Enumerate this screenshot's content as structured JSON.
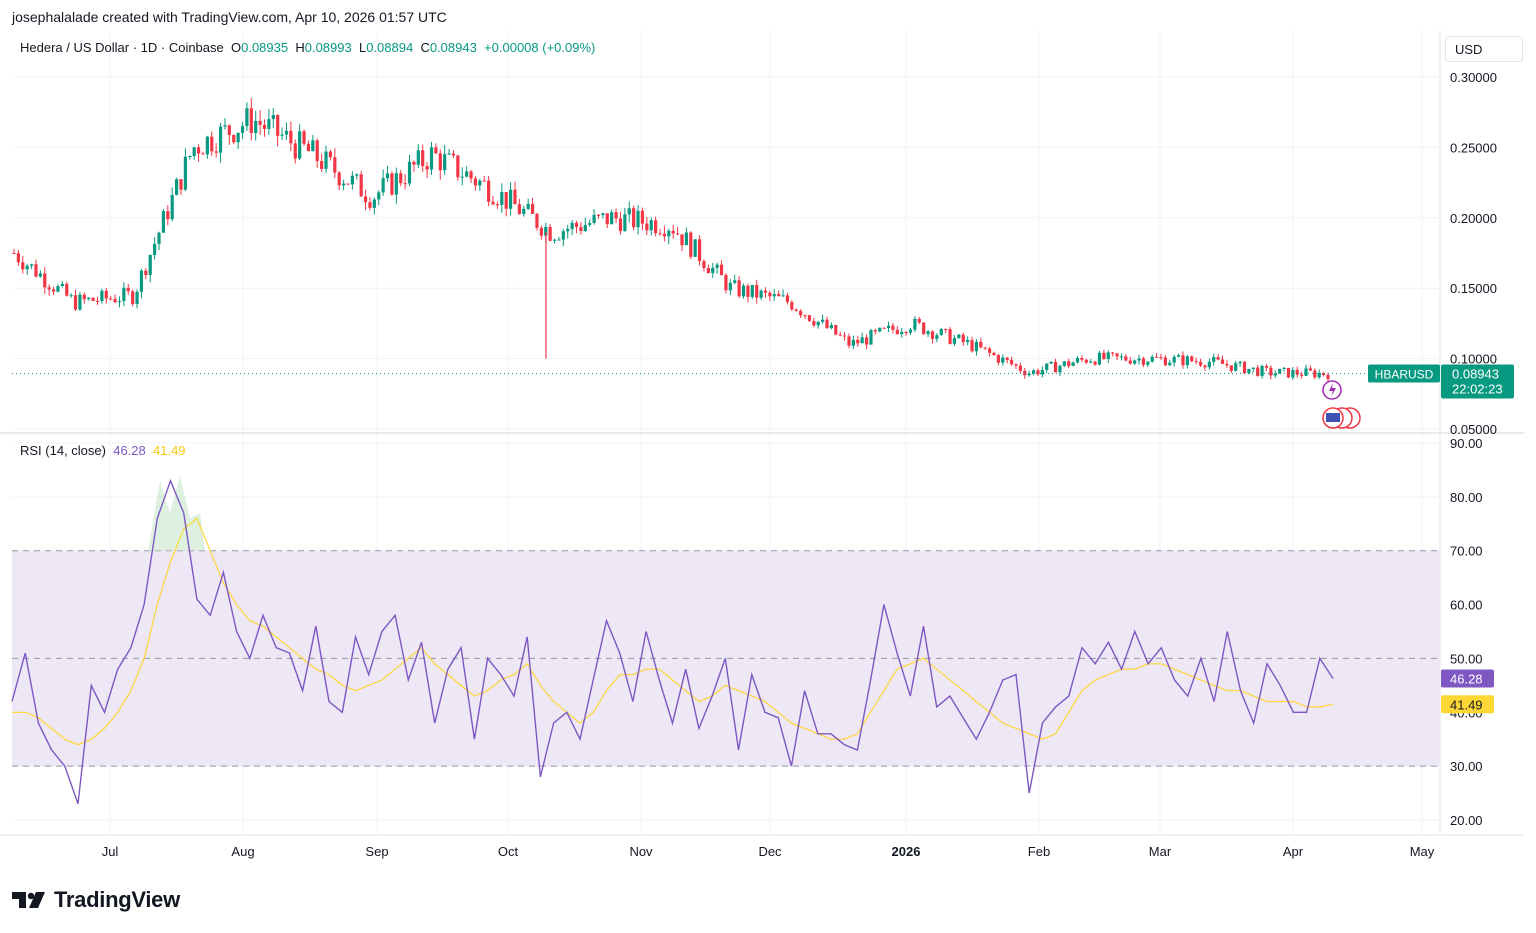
{
  "header": {
    "attribution": "josephalalade created with TradingView.com, Apr 10, 2026 01:57 UTC"
  },
  "legend": {
    "symbol": "Hedera / US Dollar · 1D · Coinbase",
    "o_label": "O",
    "o_value": "0.08935",
    "h_label": "H",
    "h_value": "0.08993",
    "l_label": "L",
    "l_value": "0.08894",
    "c_label": "C",
    "c_value": "0.08943",
    "change": "+0.00008 (+0.09%)"
  },
  "rsi_legend": {
    "label": "RSI (14, close)",
    "rsi_value": "46.28",
    "ma_value": "41.49"
  },
  "currency_button": "USD",
  "price_tag": {
    "symbol": "HBARUSD",
    "price": "0.08943",
    "countdown": "22:02:23"
  },
  "rsi_tags": {
    "rsi": "46.28",
    "ma": "41.49"
  },
  "logo": {
    "text": "TradingView"
  },
  "colors": {
    "up": "#089981",
    "down": "#f23645",
    "rsi_line": "#7e57c2",
    "rsi_ma": "#fdd835",
    "rsi_band": "#ede7f6"
  },
  "chart_data": [
    {
      "type": "candlestick",
      "title": "Hedera / US Dollar · 1D · Coinbase",
      "y_ticks": [
        "0.30000",
        "0.25000",
        "0.20000",
        "0.15000",
        "0.10000",
        "0.05000"
      ],
      "ylim": [
        0.05,
        0.3
      ],
      "x_ticks": [
        "Jul",
        "Aug",
        "Sep",
        "Oct",
        "Nov",
        "Dec",
        "2026",
        "Feb",
        "Mar",
        "Apr",
        "May"
      ],
      "approx_close_by_month": [
        {
          "t": "Jun",
          "v": 0.175
        },
        {
          "t": "Jun-end",
          "v": 0.14
        },
        {
          "t": "Jul",
          "v": 0.145
        },
        {
          "t": "Jul-mid",
          "v": 0.25
        },
        {
          "t": "Aug",
          "v": 0.27
        },
        {
          "t": "Aug-mid",
          "v": 0.245
        },
        {
          "t": "Sep",
          "v": 0.215
        },
        {
          "t": "Sep-mid",
          "v": 0.245
        },
        {
          "t": "Oct",
          "v": 0.22
        },
        {
          "t": "Oct-10",
          "v": 0.19
        },
        {
          "t": "Oct-end",
          "v": 0.2
        },
        {
          "t": "Nov",
          "v": 0.195
        },
        {
          "t": "Nov-mid",
          "v": 0.15
        },
        {
          "t": "Dec",
          "v": 0.14
        },
        {
          "t": "Dec-mid",
          "v": 0.11
        },
        {
          "t": "2026",
          "v": 0.125
        },
        {
          "t": "Jan-mid",
          "v": 0.11
        },
        {
          "t": "Feb",
          "v": 0.09
        },
        {
          "t": "Feb-mid",
          "v": 0.1
        },
        {
          "t": "Mar",
          "v": 0.1
        },
        {
          "t": "Mar-mid",
          "v": 0.098
        },
        {
          "t": "Apr",
          "v": 0.09
        },
        {
          "t": "Apr-10",
          "v": 0.08943
        }
      ],
      "last": 0.08943
    },
    {
      "type": "line",
      "title": "RSI (14, close)",
      "y_ticks": [
        "90.00",
        "80.00",
        "70.00",
        "60.00",
        "50.00",
        "40.00",
        "30.00",
        "20.00"
      ],
      "ylim": [
        20,
        90
      ],
      "bands": [
        30,
        50,
        70
      ],
      "series": [
        {
          "name": "RSI",
          "values": [
            42,
            51,
            38,
            33,
            30,
            23,
            45,
            40,
            48,
            52,
            60,
            76,
            83,
            77,
            61,
            58,
            66,
            55,
            50,
            58,
            52,
            51,
            44,
            56,
            42,
            40,
            54,
            47,
            55,
            58,
            46,
            53,
            38,
            48,
            52,
            35,
            50,
            47,
            43,
            54,
            28,
            38,
            40,
            35,
            46,
            57,
            51,
            42,
            55,
            46,
            38,
            48,
            37,
            43,
            50,
            33,
            47,
            40,
            39,
            30,
            44,
            36,
            36,
            34,
            33,
            46,
            60,
            51,
            43,
            56,
            41,
            43,
            39,
            35,
            40,
            46,
            47,
            25,
            38,
            41,
            43,
            52,
            49,
            53,
            48,
            55,
            49,
            52,
            46,
            43,
            50,
            42,
            55,
            44,
            38,
            49,
            45,
            40,
            40,
            50,
            46.28
          ]
        },
        {
          "name": "MA",
          "values": [
            40,
            40,
            39,
            37,
            35,
            34,
            35,
            37,
            40,
            44,
            50,
            60,
            68,
            74,
            76,
            70,
            64,
            60,
            57,
            56,
            54,
            52,
            50,
            48,
            47,
            45,
            44,
            45,
            46,
            48,
            50,
            52,
            49,
            47,
            45,
            43,
            44,
            46,
            47,
            49,
            45,
            42,
            40,
            38,
            40,
            44,
            47,
            47,
            48,
            48,
            46,
            44,
            42,
            43,
            45,
            44,
            43,
            42,
            40,
            38,
            37,
            36,
            35,
            35,
            36,
            40,
            44,
            48,
            49,
            50,
            48,
            46,
            44,
            42,
            40,
            38,
            37,
            36,
            35,
            36,
            40,
            44,
            46,
            47,
            48,
            48,
            49,
            49,
            48,
            47,
            46,
            45,
            44,
            44,
            43,
            42,
            42,
            42,
            41,
            41,
            41.49
          ]
        }
      ]
    }
  ]
}
